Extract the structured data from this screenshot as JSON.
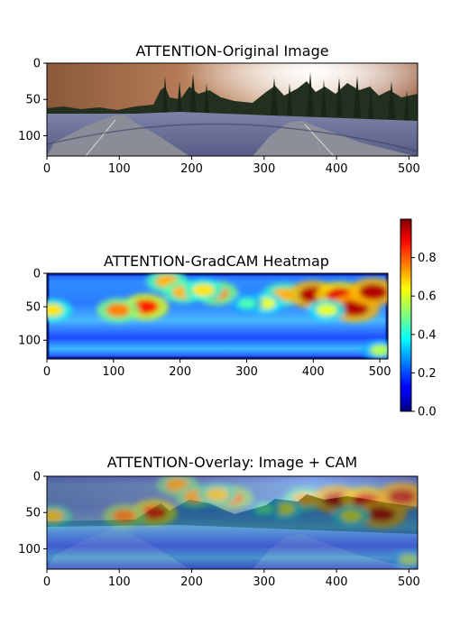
{
  "chart_data": [
    {
      "type": "heatmap",
      "title": "ATTENTION-Original Image",
      "xlim": [
        0,
        512
      ],
      "ylim": [
        128,
        0
      ],
      "xticks": [
        "0",
        "100",
        "200",
        "300",
        "400",
        "500"
      ],
      "yticks": [
        "0",
        "50",
        "100"
      ],
      "content": "photo"
    },
    {
      "type": "heatmap",
      "title": "ATTENTION-GradCAM Heatmap",
      "xlim": [
        0,
        512
      ],
      "ylim": [
        128,
        0
      ],
      "xticks": [
        "0",
        "100",
        "200",
        "300",
        "400",
        "500"
      ],
      "yticks": [
        "0",
        "50",
        "100"
      ],
      "colormap": "jet",
      "colorbar": {
        "range": [
          0.0,
          1.0
        ],
        "ticks": [
          "0.0",
          "0.2",
          "0.4",
          "0.6",
          "0.8"
        ]
      },
      "hotspots": [
        {
          "x": 180,
          "y": 12,
          "value": 0.7
        },
        {
          "x": 205,
          "y": 28,
          "value": 0.7
        },
        {
          "x": 255,
          "y": 30,
          "value": 0.75
        },
        {
          "x": 235,
          "y": 25,
          "value": 0.65
        },
        {
          "x": 355,
          "y": 32,
          "value": 0.7
        },
        {
          "x": 400,
          "y": 32,
          "value": 0.95
        },
        {
          "x": 440,
          "y": 33,
          "value": 0.9
        },
        {
          "x": 462,
          "y": 52,
          "value": 0.95
        },
        {
          "x": 490,
          "y": 28,
          "value": 0.95
        },
        {
          "x": 148,
          "y": 50,
          "value": 0.85
        },
        {
          "x": 107,
          "y": 55,
          "value": 0.75
        },
        {
          "x": 8,
          "y": 55,
          "value": 0.65
        },
        {
          "x": 328,
          "y": 45,
          "value": 0.6
        },
        {
          "x": 300,
          "y": 45,
          "value": 0.45
        },
        {
          "x": 500,
          "y": 115,
          "value": 0.55
        },
        {
          "x": 420,
          "y": 55,
          "value": 0.6
        }
      ]
    },
    {
      "type": "heatmap",
      "title": "ATTENTION-Overlay: Image + CAM",
      "xlim": [
        0,
        512
      ],
      "ylim": [
        128,
        0
      ],
      "xticks": [
        "0",
        "100",
        "200",
        "300",
        "400",
        "500"
      ],
      "yticks": [
        "0",
        "50",
        "100"
      ],
      "colormap": "jet",
      "overlay": true
    }
  ]
}
